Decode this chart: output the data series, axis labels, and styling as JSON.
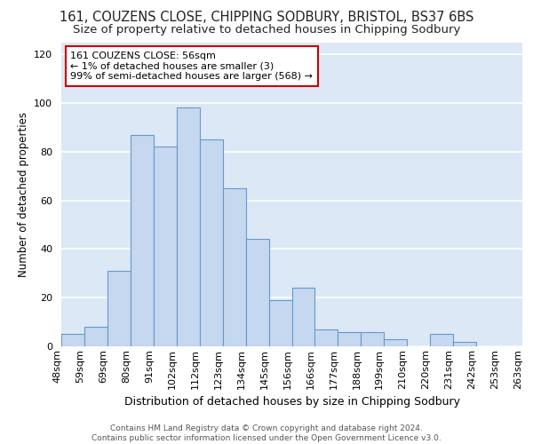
{
  "title_line1": "161, COUZENS CLOSE, CHIPPING SODBURY, BRISTOL, BS37 6BS",
  "title_line2": "Size of property relative to detached houses in Chipping Sodbury",
  "xlabel": "Distribution of detached houses by size in Chipping Sodbury",
  "ylabel": "Number of detached properties",
  "footer_line1": "Contains HM Land Registry data © Crown copyright and database right 2024.",
  "footer_line2": "Contains public sector information licensed under the Open Government Licence v3.0.",
  "bin_labels": [
    "48sqm",
    "59sqm",
    "69sqm",
    "80sqm",
    "91sqm",
    "102sqm",
    "112sqm",
    "123sqm",
    "134sqm",
    "145sqm",
    "156sqm",
    "166sqm",
    "177sqm",
    "188sqm",
    "199sqm",
    "210sqm",
    "220sqm",
    "231sqm",
    "242sqm",
    "253sqm",
    "263sqm"
  ],
  "bar_values": [
    5,
    8,
    31,
    87,
    82,
    98,
    85,
    65,
    44,
    19,
    24,
    7,
    6,
    6,
    3,
    0,
    5,
    2,
    0,
    0
  ],
  "bar_color": "#c5d8f0",
  "bar_edge_color": "#6699cc",
  "annotation_text": "161 COUZENS CLOSE: 56sqm\n← 1% of detached houses are smaller (3)\n99% of semi-detached houses are larger (568) →",
  "annotation_box_color": "#ffffff",
  "annotation_box_edge_color": "#cc0000",
  "ylim": [
    0,
    125
  ],
  "yticks": [
    0,
    20,
    40,
    60,
    80,
    100,
    120
  ],
  "background_color": "#dce8f5",
  "grid_color": "#ffffff",
  "title_fontsize": 10.5,
  "subtitle_fontsize": 9.5,
  "xlabel_fontsize": 9,
  "ylabel_fontsize": 8.5,
  "tick_fontsize": 8,
  "footer_fontsize": 6.5
}
